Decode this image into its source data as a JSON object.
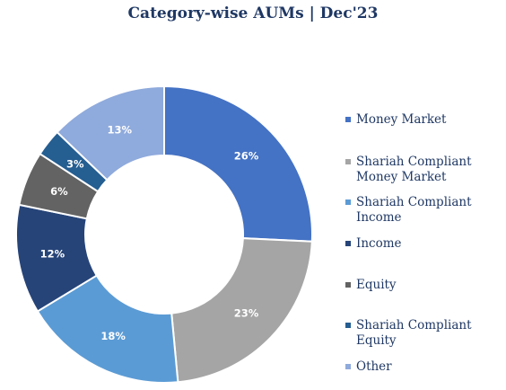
{
  "title": "Category-wise AUMs | Dec'23",
  "chart_data": {
    "type": "pie",
    "title": "Category-wise AUMs | Dec'23",
    "legend": "right",
    "slices": [
      {
        "name": "Money Market",
        "value": 26,
        "label": "26%",
        "color": "#4472c4"
      },
      {
        "name": "Shariah Compliant Money Market",
        "value": 23,
        "label": "23%",
        "color": "#a5a5a5"
      },
      {
        "name": "Shariah Compliant Income",
        "value": 18,
        "label": "18%",
        "color": "#5b9bd5"
      },
      {
        "name": "Income",
        "value": 12,
        "label": "12%",
        "color": "#264478"
      },
      {
        "name": "Equity",
        "value": 6,
        "label": "6%",
        "color": "#636363"
      },
      {
        "name": "Shariah Compliant Equity",
        "value": 3,
        "label": "3%",
        "color": "#255e91"
      },
      {
        "name": "Other",
        "value": 13,
        "label": "13%",
        "color": "#8faadc"
      }
    ]
  },
  "legend": {
    "items": [
      {
        "line1": "Money Market",
        "line2": ""
      },
      {
        "line1": "Shariah Compliant",
        "line2": "Money Market"
      },
      {
        "line1": "Shariah Compliant",
        "line2": "Income"
      },
      {
        "line1": "Income",
        "line2": ""
      },
      {
        "line1": "Equity",
        "line2": ""
      },
      {
        "line1": "Shariah Compliant",
        "line2": "Equity"
      },
      {
        "line1": "Other",
        "line2": ""
      }
    ]
  }
}
